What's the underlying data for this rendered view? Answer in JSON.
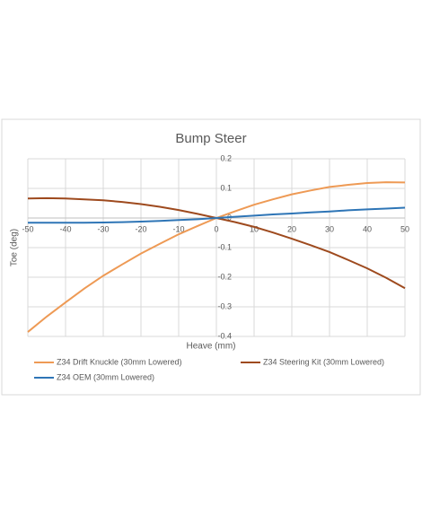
{
  "chart_data": {
    "type": "line",
    "title": "Bump Steer",
    "x_label": "Heave (mm)",
    "y_label": "Toe (deg)",
    "x": [
      -50,
      -45,
      -40,
      -35,
      -30,
      -25,
      -20,
      -15,
      -10,
      -5,
      0,
      5,
      10,
      15,
      20,
      25,
      30,
      35,
      40,
      45,
      50
    ],
    "series": [
      {
        "name": "Z34 Drift Knuckle (30mm Lowered)",
        "color": "#EE9A55",
        "values": [
          -0.385,
          -0.333,
          -0.285,
          -0.238,
          -0.195,
          -0.157,
          -0.12,
          -0.087,
          -0.055,
          -0.027,
          0,
          0.023,
          0.045,
          0.063,
          0.08,
          0.093,
          0.105,
          0.112,
          0.118,
          0.121,
          0.12
        ]
      },
      {
        "name": "Z34 Steering Kit (30mm Lowered)",
        "color": "#9E4A1E",
        "values": [
          0.066,
          0.067,
          0.066,
          0.063,
          0.06,
          0.054,
          0.047,
          0.038,
          0.027,
          0.014,
          0,
          -0.014,
          -0.03,
          -0.049,
          -0.07,
          -0.092,
          -0.115,
          -0.142,
          -0.17,
          -0.202,
          -0.237
        ]
      },
      {
        "name": "Z34 OEM (30mm Lowered)",
        "color": "#2E75B6",
        "values": [
          -0.016,
          -0.016,
          -0.016,
          -0.016,
          -0.015,
          -0.014,
          -0.012,
          -0.01,
          -0.007,
          -0.004,
          0,
          0.004,
          0.008,
          0.012,
          0.015,
          0.019,
          0.022,
          0.026,
          0.029,
          0.032,
          0.035
        ]
      }
    ],
    "xlim": [
      -50,
      50
    ],
    "xticks": [
      -50,
      -40,
      -30,
      -20,
      -10,
      0,
      10,
      20,
      30,
      40,
      50
    ],
    "ylim": [
      -0.4,
      0.2
    ],
    "yticks": [
      -0.4,
      -0.3,
      -0.2,
      -0.1,
      0,
      0.1,
      0.2
    ],
    "grid": true,
    "legend": "bottom"
  }
}
